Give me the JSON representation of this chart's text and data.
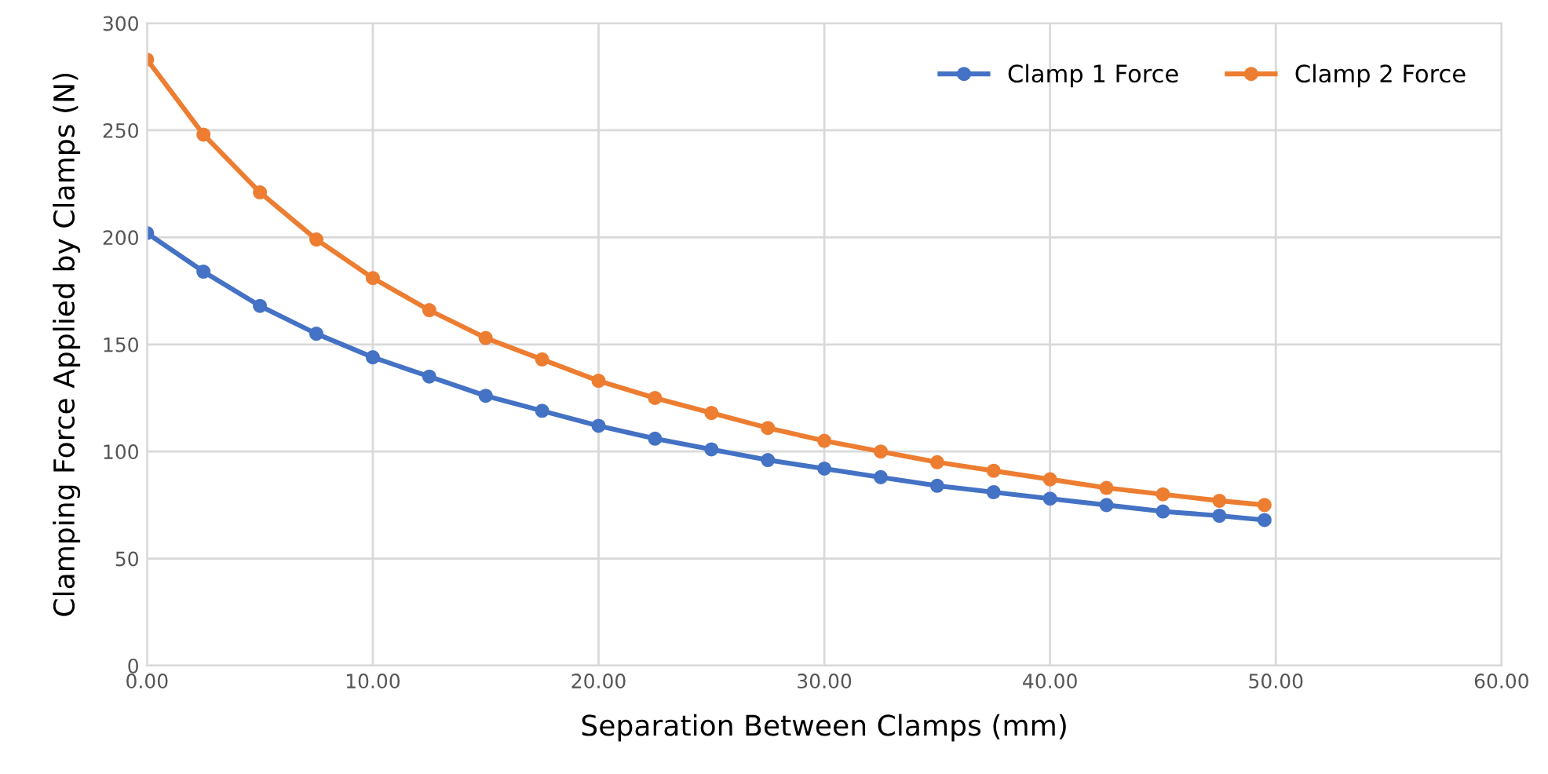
{
  "chart_data": {
    "type": "line",
    "xlabel": "Separation Between Clamps (mm)",
    "ylabel": "Clamping Force Applied by Clamps (N)",
    "x": [
      0,
      2.5,
      5,
      7.5,
      10,
      12.5,
      15,
      17.5,
      20,
      22.5,
      25,
      27.5,
      30,
      32.5,
      35,
      37.5,
      40,
      42.5,
      45,
      47.5,
      49.5
    ],
    "series": [
      {
        "name": "Clamp 1 Force",
        "color": "#4472c4",
        "values": [
          202,
          184,
          168,
          155,
          144,
          135,
          126,
          119,
          112,
          106,
          101,
          96,
          92,
          88,
          84,
          81,
          78,
          75,
          72,
          70,
          68
        ]
      },
      {
        "name": "Clamp 2 Force",
        "color": "#ed7d31",
        "values": [
          283,
          248,
          221,
          199,
          181,
          166,
          153,
          143,
          133,
          125,
          118,
          111,
          105,
          100,
          95,
          91,
          87,
          83,
          80,
          77,
          75
        ]
      }
    ],
    "xlim": [
      0,
      60
    ],
    "xticks": [
      {
        "value": 0,
        "label": "0.00"
      },
      {
        "value": 10,
        "label": "10.00"
      },
      {
        "value": 20,
        "label": "20.00"
      },
      {
        "value": 30,
        "label": "30.00"
      },
      {
        "value": 40,
        "label": "40.00"
      },
      {
        "value": 50,
        "label": "50.00"
      },
      {
        "value": 60,
        "label": "60.00"
      }
    ],
    "ylim": [
      0,
      300
    ],
    "yticks": [
      0,
      50,
      100,
      150,
      200,
      250,
      300
    ],
    "grid": true,
    "legend": "top right",
    "marker": "circle",
    "line_style": "solid"
  }
}
